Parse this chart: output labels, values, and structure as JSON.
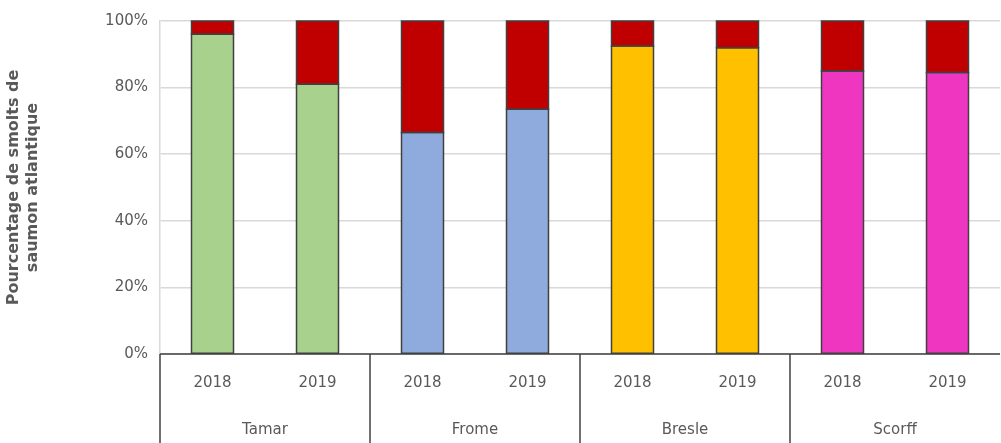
{
  "chart_data": {
    "type": "bar",
    "ylabel": "Pourcentage de smolts de saumon atlantique",
    "categories": [
      "2018",
      "2019",
      "2018",
      "2019",
      "2018",
      "2019",
      "2018",
      "2019"
    ],
    "stacked": true,
    "series": [
      {
        "colors": [
          "#a9d18e",
          "#a9d18e",
          "#8faadc",
          "#8faadc",
          "#ffc000",
          "#ffc000",
          "#ee36c0",
          "#ee36c0"
        ],
        "values": [
          96,
          81,
          66.5,
          73.5,
          92.5,
          92,
          85,
          84.5
        ]
      },
      {
        "color": "#c00000",
        "values": [
          4,
          19,
          33.5,
          26.5,
          7.5,
          8,
          15,
          15.5
        ]
      }
    ],
    "ylim": [
      0,
      100
    ],
    "yticks": [
      {
        "value": 0,
        "label": "0%"
      },
      {
        "value": 20,
        "label": "20%"
      },
      {
        "value": 40,
        "label": "40%"
      },
      {
        "value": 60,
        "label": "60%"
      },
      {
        "value": 80,
        "label": "80%"
      },
      {
        "value": 100,
        "label": "100%"
      }
    ],
    "grid": "y",
    "legend": false,
    "annotations": [
      "Tamar",
      "Frome",
      "Bresle",
      "Scorff"
    ]
  }
}
